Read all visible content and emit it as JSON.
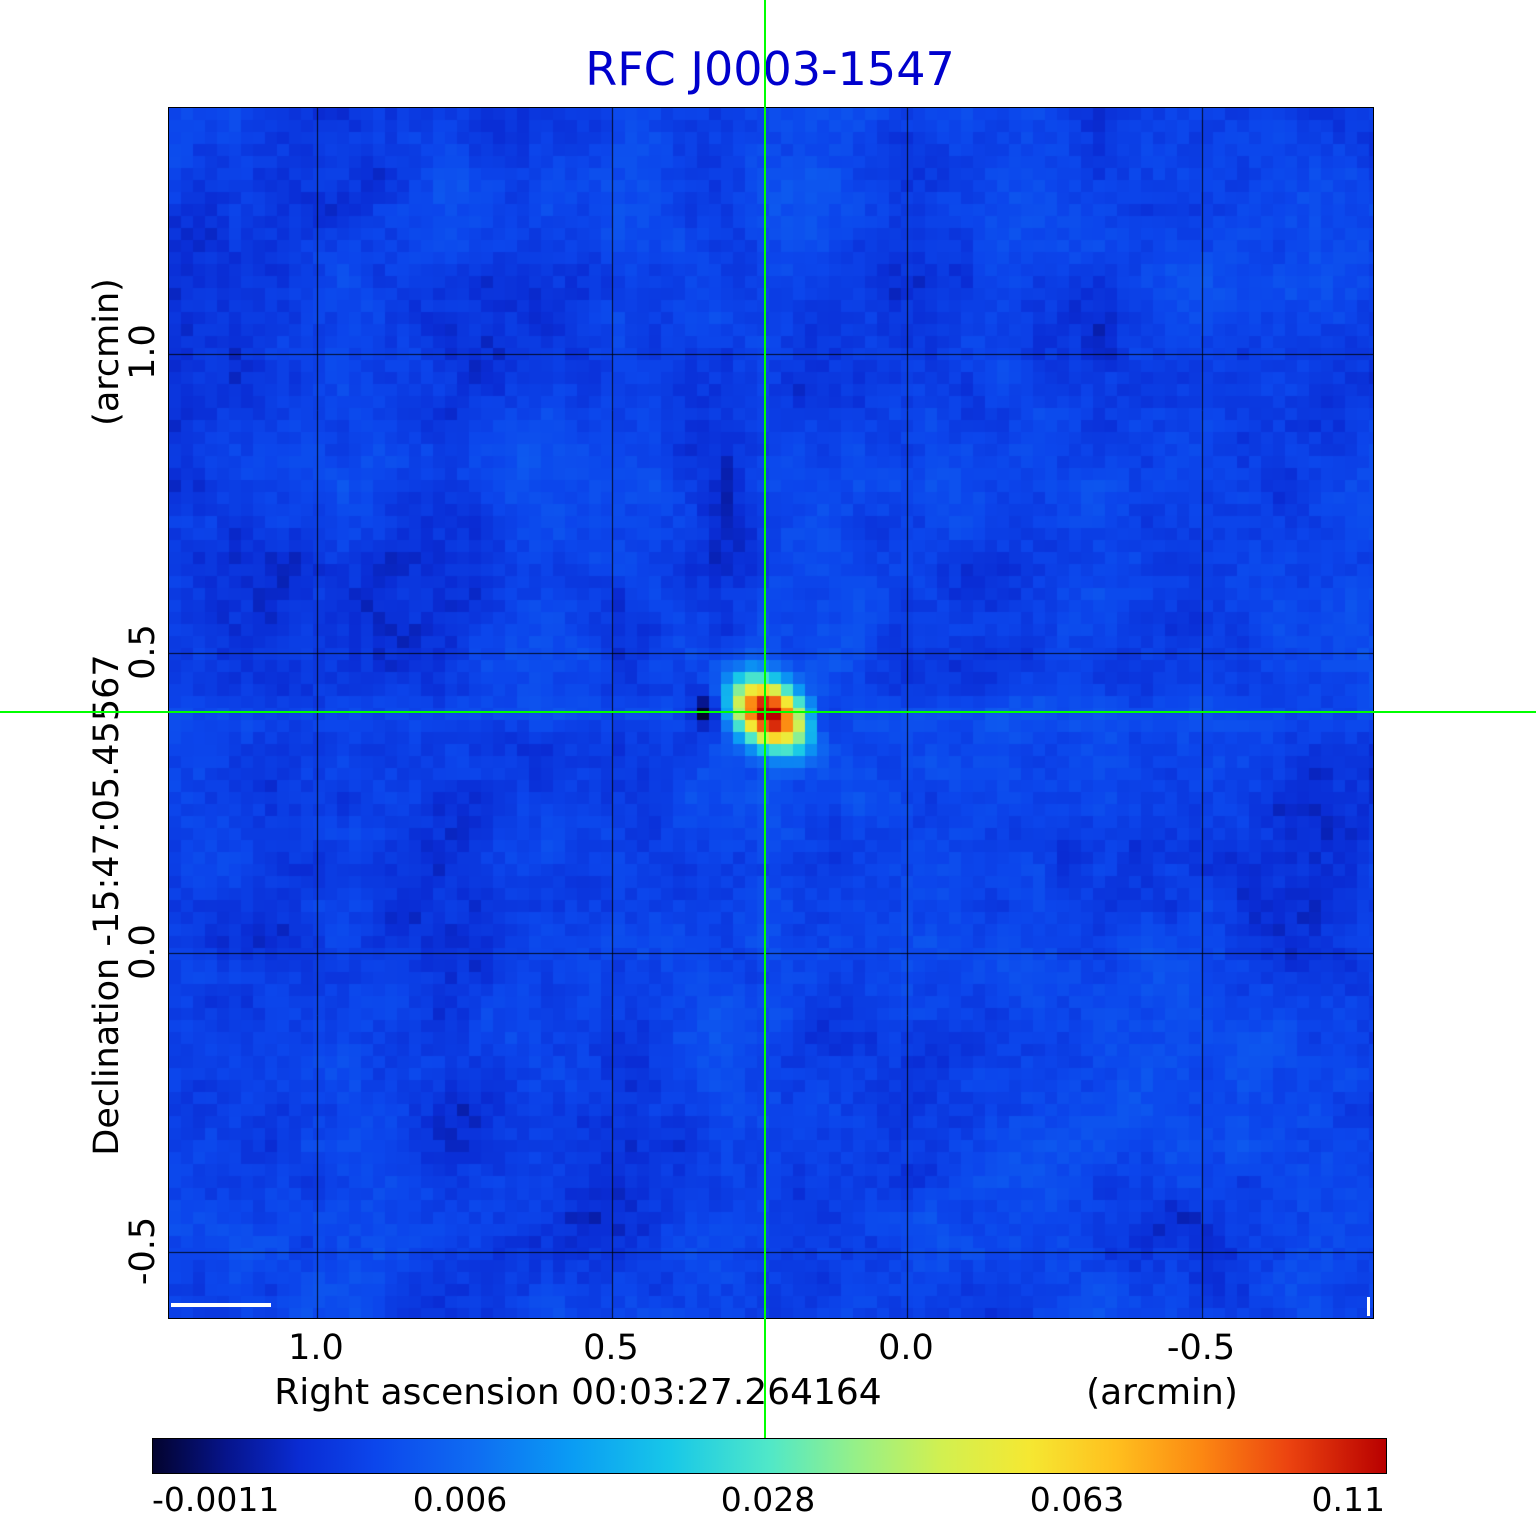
{
  "title": "RFC J0003-1547",
  "accent_color": "#0000cd",
  "crosshair_color": "#00ff00",
  "axes": {
    "y_label": "Declination  -15:47:05.45567",
    "y_unit": "(arcmin)",
    "x_label": "Right ascension  00:03:27.264164",
    "x_unit": "(arcmin)",
    "x_tick_labels": [
      "1.0",
      "0.5",
      "0.0",
      "-0.5"
    ],
    "y_tick_labels": [
      "1.0",
      "0.5",
      "0.0",
      "-0.5"
    ]
  },
  "colorbar": {
    "labels": [
      "-0.0011",
      "0.006",
      "0.028",
      "0.063",
      "0.11"
    ]
  },
  "chart_data": {
    "type": "heatmap",
    "title": "RFC J0003-1547",
    "xlabel": "Right ascension 00:03:27.264164 (arcmin)",
    "ylabel": "Declination -15:47:05.45567 (arcmin)",
    "xlim": [
      1.25,
      -0.79
    ],
    "ylim": [
      -0.61,
      1.41
    ],
    "x_ticks": [
      1.0,
      0.5,
      0.0,
      -0.5
    ],
    "y_ticks": [
      1.0,
      0.5,
      0.0,
      -0.5
    ],
    "grid": true,
    "background_level": 0.003,
    "noise_rms": 0.0011,
    "peak_value": 0.11,
    "scale": "quadratic",
    "colorbar_ticks": [
      -0.0011,
      0.006,
      0.028,
      0.063,
      0.11
    ],
    "source": {
      "ra_arcmin": 0.24,
      "dec_arcmin": 0.4,
      "peak": 0.11,
      "sigma_major_arcmin": 0.04,
      "sigma_minor_arcmin": 0.028,
      "position_angle_deg": 40
    },
    "crosshair": {
      "ra_arcmin": 0.24,
      "dec_arcmin": 0.4
    },
    "negative_sidelobes": [
      {
        "dra": 0.095,
        "ddec": 0.005,
        "depth": 0.006,
        "sigma": 0.025
      },
      {
        "dra": -0.085,
        "ddec": -0.01,
        "depth": 0.005,
        "sigma": 0.022
      }
    ],
    "colormap": [
      [
        0.0,
        "#03032e"
      ],
      [
        0.06,
        "#06148c"
      ],
      [
        0.12,
        "#0a2cd4"
      ],
      [
        0.18,
        "#0c46ec"
      ],
      [
        0.26,
        "#0f6cf2"
      ],
      [
        0.34,
        "#0a9cf4"
      ],
      [
        0.42,
        "#18c8e8"
      ],
      [
        0.5,
        "#50e8c8"
      ],
      [
        0.57,
        "#96f088"
      ],
      [
        0.64,
        "#d2f050"
      ],
      [
        0.71,
        "#f5e832"
      ],
      [
        0.78,
        "#ffc01e"
      ],
      [
        0.85,
        "#fc8812"
      ],
      [
        0.92,
        "#ec4410"
      ],
      [
        1.0,
        "#b80000"
      ]
    ]
  }
}
